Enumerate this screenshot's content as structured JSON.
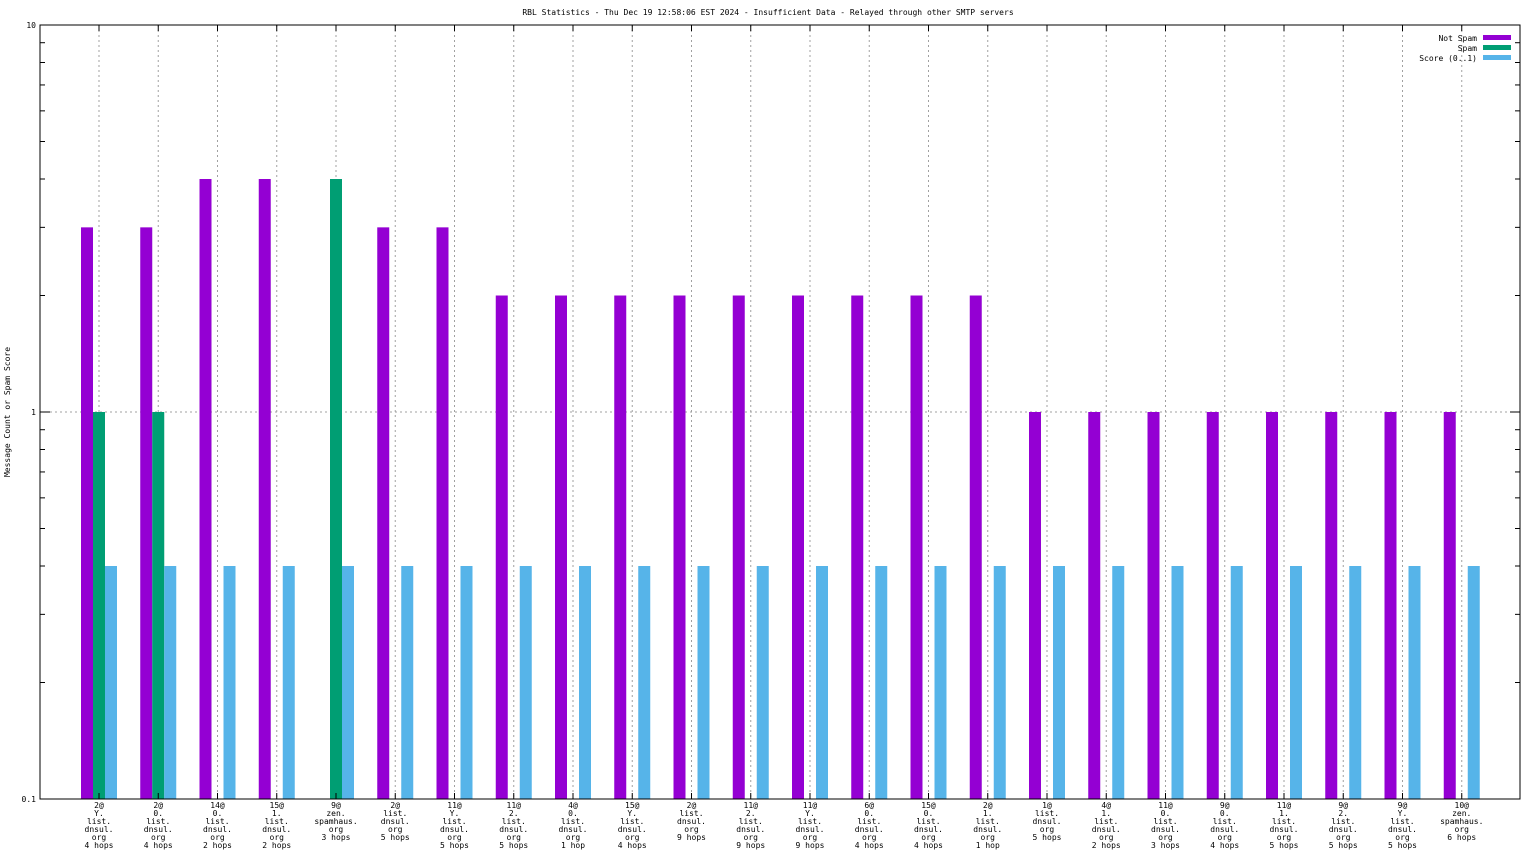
{
  "chart_data": {
    "type": "bar",
    "title": "RBL Statistics - Thu Dec 19 12:58:06 EST 2024 - Insufficient Data - Relayed through other SMTP servers",
    "ylabel": "Message Count or Spam Score",
    "xlabel": "",
    "yscale": "log",
    "ylim": [
      0.1,
      10
    ],
    "yticks": [
      "0.1",
      "1",
      "10"
    ],
    "grid": true,
    "legend_position": "top-right",
    "categories": [
      [
        "2@",
        "Y.",
        "list.",
        "dnsul.",
        "org",
        "4 hops"
      ],
      [
        "2@",
        "0.",
        "list.",
        "dnsul.",
        "org",
        "4 hops"
      ],
      [
        "14@",
        "0.",
        "list.",
        "dnsul.",
        "org",
        "2 hops"
      ],
      [
        "15@",
        "1.",
        "list.",
        "dnsul.",
        "org",
        "2 hops"
      ],
      [
        "9@",
        "zen.",
        "spamhaus.",
        "org",
        "3 hops"
      ],
      [
        "2@",
        "list.",
        "dnsul.",
        "org",
        "5 hops"
      ],
      [
        "11@",
        "Y.",
        "list.",
        "dnsul.",
        "org",
        "5 hops"
      ],
      [
        "11@",
        "2.",
        "list.",
        "dnsul.",
        "org",
        "5 hops"
      ],
      [
        "4@",
        "0.",
        "list.",
        "dnsul.",
        "org",
        "1 hop"
      ],
      [
        "15@",
        "Y.",
        "list.",
        "dnsul.",
        "org",
        "4 hops"
      ],
      [
        "2@",
        "list.",
        "dnsul.",
        "org",
        "9 hops"
      ],
      [
        "11@",
        "2.",
        "list.",
        "dnsul.",
        "org",
        "9 hops"
      ],
      [
        "11@",
        "Y.",
        "list.",
        "dnsul.",
        "org",
        "9 hops"
      ],
      [
        "6@",
        "0.",
        "list.",
        "dnsul.",
        "org",
        "4 hops"
      ],
      [
        "15@",
        "0.",
        "list.",
        "dnsul.",
        "org",
        "4 hops"
      ],
      [
        "2@",
        "1.",
        "list.",
        "dnsul.",
        "org",
        "1 hop"
      ],
      [
        "1@",
        "list.",
        "dnsul.",
        "org",
        "5 hops"
      ],
      [
        "4@",
        "1.",
        "list.",
        "dnsul.",
        "org",
        "2 hops"
      ],
      [
        "11@",
        "0.",
        "list.",
        "dnsul.",
        "org",
        "3 hops"
      ],
      [
        "9@",
        "0.",
        "list.",
        "dnsul.",
        "org",
        "4 hops"
      ],
      [
        "11@",
        "1.",
        "list.",
        "dnsul.",
        "org",
        "5 hops"
      ],
      [
        "9@",
        "2.",
        "list.",
        "dnsul.",
        "org",
        "5 hops"
      ],
      [
        "9@",
        "Y.",
        "list.",
        "dnsul.",
        "org",
        "5 hops"
      ],
      [
        "10@",
        "zen.",
        "spamhaus.",
        "org",
        "6 hops"
      ]
    ],
    "series": [
      {
        "name": "Not Spam",
        "color": "#9400d3",
        "values": [
          3,
          3,
          4,
          4,
          0,
          3,
          3,
          2,
          2,
          2,
          2,
          2,
          2,
          2,
          2,
          2,
          1,
          1,
          1,
          1,
          1,
          1,
          1,
          1
        ]
      },
      {
        "name": "Spam",
        "color": "#009e73",
        "values": [
          1,
          1,
          0,
          0,
          4,
          0,
          0,
          0,
          0,
          0,
          0,
          0,
          0,
          0,
          0,
          0,
          0,
          0,
          0,
          0,
          0,
          0,
          0,
          0
        ]
      },
      {
        "name": "Score (0..1)",
        "color": "#56b4e9",
        "values": [
          0.4,
          0.4,
          0.4,
          0.4,
          0.4,
          0.4,
          0.4,
          0.4,
          0.4,
          0.4,
          0.4,
          0.4,
          0.4,
          0.4,
          0.4,
          0.4,
          0.4,
          0.4,
          0.4,
          0.4,
          0.4,
          0.4,
          0.4,
          0.4
        ]
      }
    ]
  }
}
